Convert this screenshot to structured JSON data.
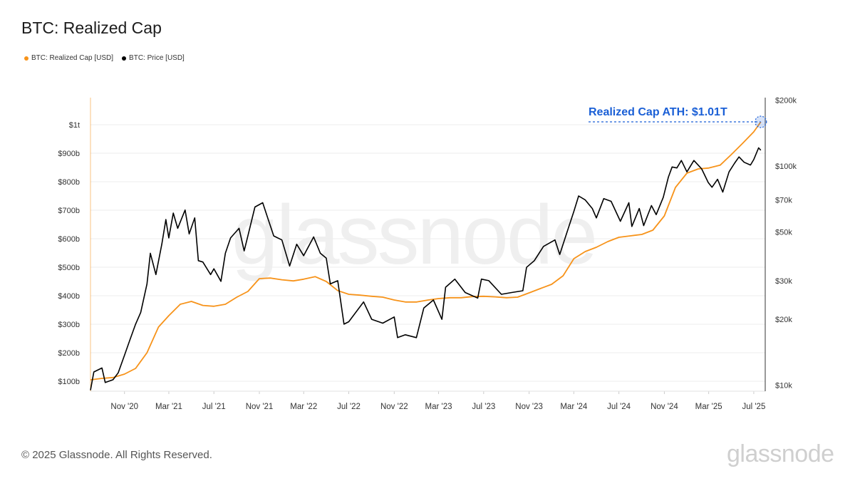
{
  "title": "BTC: Realized Cap",
  "legend": {
    "items": [
      {
        "label": "BTC: Realized Cap [USD]",
        "color": "#f7931a"
      },
      {
        "label": "BTC: Price [USD]",
        "color": "#000000"
      }
    ]
  },
  "watermark": "glassnode",
  "footer": {
    "copyright": "© 2025 Glassnode. All Rights Reserved.",
    "brand": "glassnode"
  },
  "chart_data": {
    "type": "line",
    "title": "BTC: Realized Cap",
    "x_range": [
      "2020-08-01",
      "2025-08-01"
    ],
    "x_ticks": [
      "Nov '20",
      "Mar '21",
      "Jul '21",
      "Nov '21",
      "Mar '22",
      "Jul '22",
      "Nov '22",
      "Mar '23",
      "Jul '23",
      "Nov '23",
      "Mar '24",
      "Jul '24",
      "Nov '24",
      "Mar '25",
      "Jul '25"
    ],
    "x_tick_dates": [
      "2020-11-01",
      "2021-03-01",
      "2021-07-01",
      "2021-11-01",
      "2022-03-01",
      "2022-07-01",
      "2022-11-01",
      "2023-03-01",
      "2023-07-01",
      "2023-11-01",
      "2024-03-01",
      "2024-07-01",
      "2024-11-01",
      "2025-03-01",
      "2025-07-01"
    ],
    "y_left": {
      "ticks": [
        "$100b",
        "$200b",
        "$300b",
        "$400b",
        "$500b",
        "$600b",
        "$700b",
        "$800b",
        "$900b",
        "$1t"
      ],
      "values": [
        100,
        200,
        300,
        400,
        500,
        600,
        700,
        800,
        900,
        1000
      ],
      "unit": "billion USD",
      "range": [
        65,
        1095
      ],
      "scale": "linear"
    },
    "y_right": {
      "ticks": [
        "$10k",
        "$20k",
        "$30k",
        "$50k",
        "$70k",
        "$100k",
        "$200k"
      ],
      "values": [
        10000,
        20000,
        30000,
        50000,
        70000,
        100000,
        200000
      ],
      "range": [
        9400,
        205000
      ],
      "scale": "log"
    },
    "grid": true,
    "legend_position": "top-left",
    "series": [
      {
        "name": "BTC: Realized Cap [USD]",
        "color": "#f7931a",
        "axis": "left",
        "points": [
          [
            "2020-08-01",
            105
          ],
          [
            "2020-09-01",
            110
          ],
          [
            "2020-10-01",
            113
          ],
          [
            "2020-11-01",
            125
          ],
          [
            "2020-12-01",
            145
          ],
          [
            "2021-01-01",
            200
          ],
          [
            "2021-02-01",
            290
          ],
          [
            "2021-03-01",
            330
          ],
          [
            "2021-04-01",
            370
          ],
          [
            "2021-05-01",
            380
          ],
          [
            "2021-06-01",
            366
          ],
          [
            "2021-07-01",
            363
          ],
          [
            "2021-08-01",
            370
          ],
          [
            "2021-09-01",
            395
          ],
          [
            "2021-10-01",
            415
          ],
          [
            "2021-11-01",
            460
          ],
          [
            "2021-12-01",
            462
          ],
          [
            "2022-01-01",
            456
          ],
          [
            "2022-02-01",
            452
          ],
          [
            "2022-03-01",
            458
          ],
          [
            "2022-04-01",
            467
          ],
          [
            "2022-05-01",
            450
          ],
          [
            "2022-06-01",
            418
          ],
          [
            "2022-07-01",
            405
          ],
          [
            "2022-08-01",
            402
          ],
          [
            "2022-09-01",
            398
          ],
          [
            "2022-10-01",
            395
          ],
          [
            "2022-11-01",
            385
          ],
          [
            "2022-12-01",
            378
          ],
          [
            "2023-01-01",
            378
          ],
          [
            "2023-02-01",
            385
          ],
          [
            "2023-03-01",
            390
          ],
          [
            "2023-04-01",
            393
          ],
          [
            "2023-05-01",
            393
          ],
          [
            "2023-06-01",
            397
          ],
          [
            "2023-07-01",
            398
          ],
          [
            "2023-08-01",
            396
          ],
          [
            "2023-09-01",
            393
          ],
          [
            "2023-10-01",
            395
          ],
          [
            "2023-11-01",
            410
          ],
          [
            "2023-12-01",
            425
          ],
          [
            "2024-01-01",
            440
          ],
          [
            "2024-02-01",
            470
          ],
          [
            "2024-03-01",
            530
          ],
          [
            "2024-04-01",
            555
          ],
          [
            "2024-05-01",
            570
          ],
          [
            "2024-06-01",
            590
          ],
          [
            "2024-07-01",
            605
          ],
          [
            "2024-08-01",
            610
          ],
          [
            "2024-09-01",
            615
          ],
          [
            "2024-10-01",
            630
          ],
          [
            "2024-11-01",
            680
          ],
          [
            "2024-12-01",
            780
          ],
          [
            "2025-01-01",
            830
          ],
          [
            "2025-02-01",
            845
          ],
          [
            "2025-03-01",
            848
          ],
          [
            "2025-04-01",
            858
          ],
          [
            "2025-05-01",
            895
          ],
          [
            "2025-06-01",
            935
          ],
          [
            "2025-07-01",
            975
          ],
          [
            "2025-07-20",
            1010
          ]
        ]
      },
      {
        "name": "BTC: Price [USD]",
        "color": "#000000",
        "axis": "right",
        "points": [
          [
            "2020-08-01",
            9500
          ],
          [
            "2020-08-10",
            11500
          ],
          [
            "2020-09-01",
            12000
          ],
          [
            "2020-09-10",
            10300
          ],
          [
            "2020-10-01",
            10600
          ],
          [
            "2020-10-15",
            11400
          ],
          [
            "2020-11-01",
            13700
          ],
          [
            "2020-11-15",
            16000
          ],
          [
            "2020-12-01",
            19000
          ],
          [
            "2020-12-15",
            21500
          ],
          [
            "2021-01-01",
            29000
          ],
          [
            "2021-01-10",
            40000
          ],
          [
            "2021-01-25",
            32000
          ],
          [
            "2021-02-10",
            44000
          ],
          [
            "2021-02-21",
            57000
          ],
          [
            "2021-03-01",
            47000
          ],
          [
            "2021-03-13",
            61000
          ],
          [
            "2021-03-25",
            52000
          ],
          [
            "2021-04-14",
            63000
          ],
          [
            "2021-04-25",
            49000
          ],
          [
            "2021-05-10",
            58000
          ],
          [
            "2021-05-20",
            37000
          ],
          [
            "2021-06-01",
            36500
          ],
          [
            "2021-06-22",
            32000
          ],
          [
            "2021-07-01",
            34000
          ],
          [
            "2021-07-20",
            29800
          ],
          [
            "2021-08-01",
            40000
          ],
          [
            "2021-08-15",
            47000
          ],
          [
            "2021-09-07",
            52000
          ],
          [
            "2021-09-21",
            41000
          ],
          [
            "2021-10-01",
            48000
          ],
          [
            "2021-10-20",
            65000
          ],
          [
            "2021-11-10",
            68000
          ],
          [
            "2021-11-25",
            57000
          ],
          [
            "2021-12-10",
            48000
          ],
          [
            "2022-01-01",
            46000
          ],
          [
            "2022-01-22",
            35000
          ],
          [
            "2022-02-10",
            44000
          ],
          [
            "2022-03-01",
            39000
          ],
          [
            "2022-03-28",
            47500
          ],
          [
            "2022-04-15",
            40000
          ],
          [
            "2022-05-01",
            38000
          ],
          [
            "2022-05-12",
            29000
          ],
          [
            "2022-06-01",
            30000
          ],
          [
            "2022-06-18",
            19000
          ],
          [
            "2022-07-01",
            19500
          ],
          [
            "2022-08-10",
            24000
          ],
          [
            "2022-09-01",
            20000
          ],
          [
            "2022-10-01",
            19200
          ],
          [
            "2022-11-01",
            20500
          ],
          [
            "2022-11-10",
            16500
          ],
          [
            "2022-12-01",
            17000
          ],
          [
            "2022-12-31",
            16500
          ],
          [
            "2023-01-20",
            22500
          ],
          [
            "2023-02-15",
            24500
          ],
          [
            "2023-03-10",
            20000
          ],
          [
            "2023-03-20",
            28000
          ],
          [
            "2023-04-14",
            30500
          ],
          [
            "2023-05-12",
            26500
          ],
          [
            "2023-06-15",
            25000
          ],
          [
            "2023-06-25",
            30500
          ],
          [
            "2023-07-15",
            30000
          ],
          [
            "2023-08-18",
            26000
          ],
          [
            "2023-09-15",
            26500
          ],
          [
            "2023-10-15",
            27000
          ],
          [
            "2023-10-25",
            34500
          ],
          [
            "2023-11-15",
            37000
          ],
          [
            "2023-12-10",
            43000
          ],
          [
            "2024-01-10",
            46000
          ],
          [
            "2024-01-23",
            39500
          ],
          [
            "2024-02-15",
            52000
          ],
          [
            "2024-03-01",
            62000
          ],
          [
            "2024-03-14",
            73000
          ],
          [
            "2024-04-01",
            70000
          ],
          [
            "2024-04-20",
            64000
          ],
          [
            "2024-05-01",
            58000
          ],
          [
            "2024-05-21",
            71000
          ],
          [
            "2024-06-10",
            69000
          ],
          [
            "2024-07-05",
            56000
          ],
          [
            "2024-07-28",
            68000
          ],
          [
            "2024-08-05",
            53000
          ],
          [
            "2024-08-25",
            64000
          ],
          [
            "2024-09-06",
            53500
          ],
          [
            "2024-09-27",
            66000
          ],
          [
            "2024-10-10",
            60000
          ],
          [
            "2024-10-29",
            72000
          ],
          [
            "2024-11-12",
            89000
          ],
          [
            "2024-11-22",
            99000
          ],
          [
            "2024-12-05",
            98000
          ],
          [
            "2024-12-17",
            106000
          ],
          [
            "2025-01-01",
            94000
          ],
          [
            "2025-01-20",
            106000
          ],
          [
            "2025-02-10",
            97000
          ],
          [
            "2025-02-28",
            84000
          ],
          [
            "2025-03-10",
            80000
          ],
          [
            "2025-03-25",
            87000
          ],
          [
            "2025-04-08",
            76000
          ],
          [
            "2025-04-25",
            94000
          ],
          [
            "2025-05-10",
            103000
          ],
          [
            "2025-05-22",
            110000
          ],
          [
            "2025-06-05",
            104000
          ],
          [
            "2025-06-22",
            101000
          ],
          [
            "2025-07-01",
            107000
          ],
          [
            "2025-07-14",
            121000
          ],
          [
            "2025-07-20",
            118000
          ]
        ]
      }
    ],
    "annotations": [
      {
        "text": "Realized Cap ATH: $1.01T",
        "color": "#1a5fd6",
        "date": "2025-07-20",
        "value": 1010
      }
    ]
  }
}
